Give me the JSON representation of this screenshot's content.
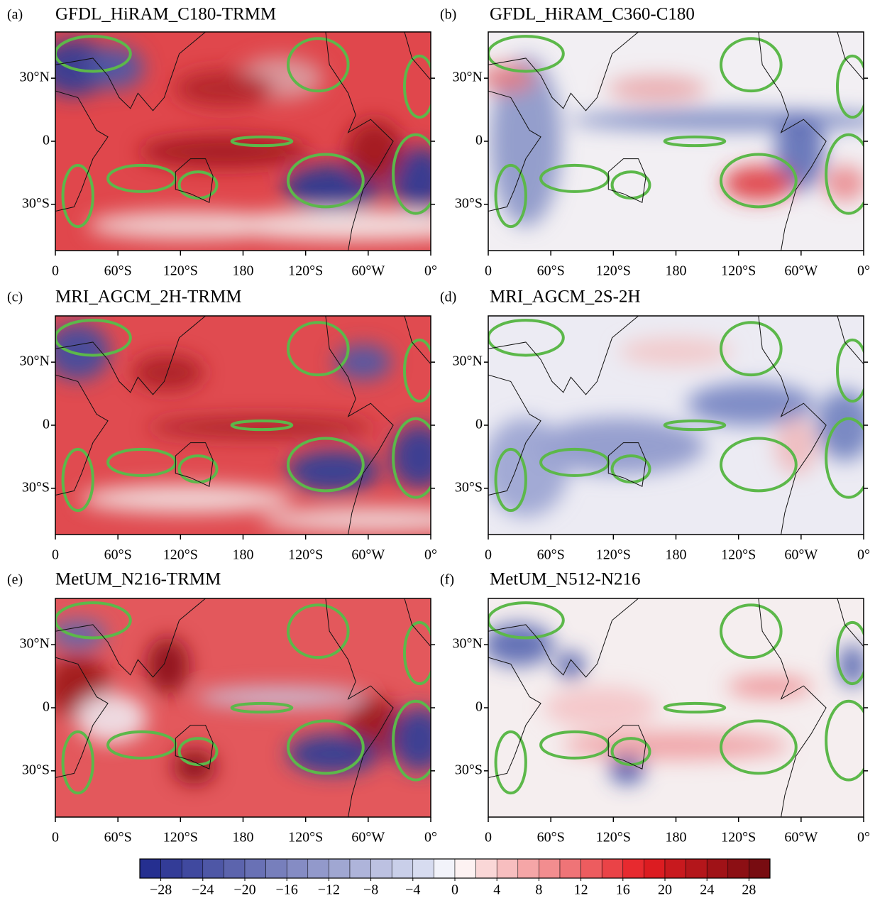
{
  "panels": [
    {
      "label": "(a)",
      "title": "GFDL_HiRAM_C180-TRMM"
    },
    {
      "label": "(b)",
      "title": "GFDL_HiRAM_C360-C180"
    },
    {
      "label": "(c)",
      "title": "MRI_AGCM_2H-TRMM"
    },
    {
      "label": "(d)",
      "title": "MRI_AGCM_2S-2H"
    },
    {
      "label": "(e)",
      "title": "MetUM_N216-TRMM"
    },
    {
      "label": "(f)",
      "title": "MetUM_N512-N216"
    }
  ],
  "map_axes": {
    "yticks": [
      "30°N",
      "0",
      "30°S"
    ],
    "xticks": [
      "0",
      "60°S",
      "120°S",
      "180",
      "120°S",
      "60°W",
      "0°"
    ]
  },
  "colorbar": {
    "lim": [
      -30,
      30
    ],
    "ticks": [
      {
        "value": -28,
        "label": "−28"
      },
      {
        "value": -24,
        "label": "−24"
      },
      {
        "value": -20,
        "label": "−20"
      },
      {
        "value": -16,
        "label": "−16"
      },
      {
        "value": -12,
        "label": "−12"
      },
      {
        "value": -8,
        "label": "−8"
      },
      {
        "value": -4,
        "label": "−4"
      },
      0,
      4,
      8,
      12,
      16,
      20,
      24,
      28
    ]
  }
}
